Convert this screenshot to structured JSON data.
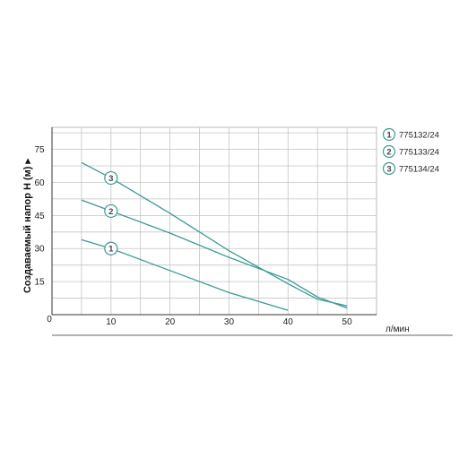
{
  "chart_data": {
    "type": "line",
    "ylabel": "Создаваемый напор H (м) ▸",
    "xlabel": "л/мин",
    "x_origin_label": "0",
    "xlim": [
      0,
      55
    ],
    "ylim": [
      0,
      85
    ],
    "xticks": [
      10,
      20,
      30,
      40,
      50
    ],
    "yticks": [
      15,
      30,
      45,
      60,
      75
    ],
    "grid": true,
    "legend_position": "right",
    "line_color": "#3a9a96",
    "series": [
      {
        "name": "775132/24",
        "badge": "1",
        "x": [
          5,
          10,
          20,
          30,
          40
        ],
        "y": [
          34,
          30,
          20,
          10,
          2
        ]
      },
      {
        "name": "775133/24",
        "badge": "2",
        "x": [
          5,
          10,
          20,
          30,
          40,
          45,
          50
        ],
        "y": [
          52,
          47,
          37,
          26,
          16,
          8,
          3
        ]
      },
      {
        "name": "775134/24",
        "badge": "3",
        "x": [
          5,
          10,
          20,
          30,
          40,
          45,
          50
        ],
        "y": [
          69,
          62,
          46,
          29,
          14,
          7,
          4
        ]
      }
    ]
  }
}
